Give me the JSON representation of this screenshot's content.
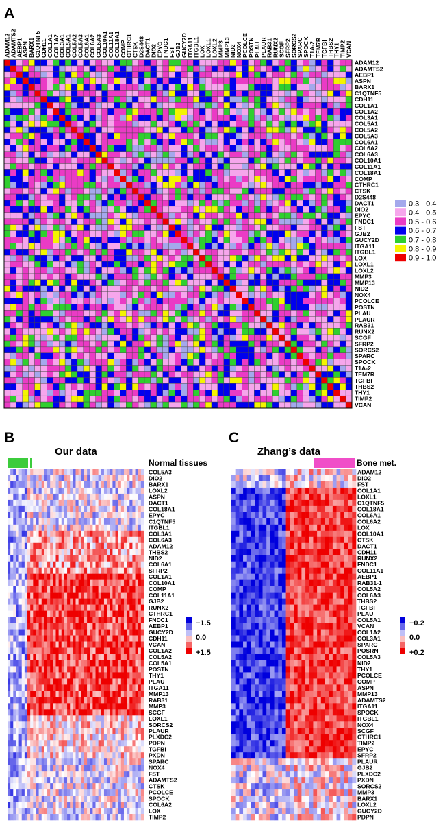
{
  "chart_data": [
    {
      "type": "heatmap",
      "panel_label": "A",
      "description_kind": "correlation matrix (symmetric, diagonal = 1)",
      "genes": [
        "ADAM12",
        "ADAMTS2",
        "AEBP1",
        "ASPN",
        "BARX1",
        "C1QTNF5",
        "CDH11",
        "COL1A1",
        "COL1A2",
        "COL3A1",
        "COL5A1",
        "COL5A2",
        "COL5A3",
        "COL6A1",
        "COL6A2",
        "COL6A3",
        "COL10A1",
        "COL11A1",
        "COL18A1",
        "COMP",
        "CTHRC1",
        "CTSK",
        "D2S448",
        "DACT1",
        "DIO2",
        "EPYC",
        "FNDC1",
        "FST",
        "GJB2",
        "GUCY2D",
        "ITGA11",
        "ITGBL1",
        "LOX",
        "LOXL1",
        "LOXL2",
        "MMP3",
        "MMP13",
        "NID2",
        "NOX4",
        "PCOLCE",
        "POSTN",
        "PLAU",
        "PLAUR",
        "RAB31",
        "RUNX2",
        "SCGF",
        "SFRP2",
        "SORCS2",
        "SPARC",
        "SPOCK",
        "T1A-2",
        "TEM7R",
        "TGFBI",
        "THBS2",
        "THY1",
        "TIMP2",
        "VCAN"
      ],
      "legend": [
        {
          "label": "0.3 - 0.4",
          "color": "#a4a8ec"
        },
        {
          "label": "0.4 - 0.5",
          "color": "#f6a6ec"
        },
        {
          "label": "0.5 - 0.6",
          "color": "#ea3bc5"
        },
        {
          "label": "0.6 - 0.7",
          "color": "#0000ee"
        },
        {
          "label": "0.7 - 0.8",
          "color": "#2fcf2f"
        },
        {
          "label": "0.8 - 0.9",
          "color": "#f4f400"
        },
        {
          "label": "0.9 - 1.0",
          "color": "#ee0000"
        }
      ]
    },
    {
      "type": "heatmap",
      "panel_label": "B",
      "title": "Our data",
      "annotation_label": "Normal tissues",
      "annotation_color": "#3ccc3c",
      "genes": [
        "COL5A3",
        "DIO2",
        "BARX1",
        "LOXL2",
        "ASPN",
        "DACT1",
        "COL18A1",
        "EPYC",
        "C1QTNF5",
        "ITGBL1",
        "COL3A1",
        "COL6A3",
        "ADAM12",
        "THBS2",
        "NID2",
        "COL6A1",
        "SFRP2",
        "COL1A1",
        "COL10A1",
        "COMP",
        "COL11A1",
        "GJB2",
        "RUNX2",
        "CTHRC1",
        "FNDC1",
        "AEBP1",
        "GUCY2D",
        "CDH11",
        "VCAN",
        "COL1A2",
        "COL5A2",
        "COL5A1",
        "POSTN",
        "THY1",
        "PLAU",
        "ITGA11",
        "MMP13",
        "RAB31",
        "MMP3",
        "SCGF",
        "LOXL1",
        "SORCS2",
        "PLAUR",
        "PLXDC2",
        "PDPN",
        "TGFBI",
        "PXDN",
        "SPARC",
        "NOX4",
        "FST",
        "ADAMTS2",
        "CTSK",
        "PCOLCE",
        "SPOCK",
        "COL6A2",
        "LOX",
        "TIMP2"
      ],
      "scale_labels": [
        "−1.5",
        "0.0",
        "+1.5"
      ],
      "color_low": "#0000dd",
      "color_mid": "#ffffff",
      "color_high": "#ee0000"
    },
    {
      "type": "heatmap",
      "panel_label": "C",
      "title": "Zhang’s data",
      "annotation_label": "Bone met.",
      "annotation_color": "#f04ec8",
      "genes": [
        "ADAM12",
        "DIO2",
        "FST",
        "COL1A1",
        "LOXL1",
        "C1QTNF5",
        "COL18A1",
        "COL6A1",
        "COL6A2",
        "LOX",
        "COL10A1",
        "CTSK",
        "DACT1",
        "CDH11",
        "RUNX2",
        "FNDC1",
        "COL11A1",
        "AEBP1",
        "RAB31-1",
        "COL5A2",
        "COL6A3",
        "THBS2",
        "TGFBI",
        "PLAU",
        "COL5A1",
        "VCAN",
        "COL1A2",
        "COL3A1",
        "SPARC",
        "POSRN",
        "COL5A3",
        "NID2",
        "THY1",
        "PCOLCE",
        "COMP",
        "ASPN",
        "MMP13",
        "ADAMTS2",
        "ITGA11",
        "SPOCK",
        "ITGBL1",
        "NOX4",
        "SCGF",
        "CTHRC1",
        "TIMP2",
        "EPYC",
        "SFRP2",
        "PLAUR",
        "GJB2",
        "PLXDC2",
        "PXDN",
        "SORCS2",
        "MMP3",
        "BARX1",
        "LOXL2",
        "GUCY2D",
        "PDPN"
      ],
      "scale_labels": [
        "−0.2",
        "0.0",
        "+0.2"
      ],
      "color_low": "#0000dd",
      "color_mid": "#ffffff",
      "color_high": "#ee0000"
    }
  ]
}
